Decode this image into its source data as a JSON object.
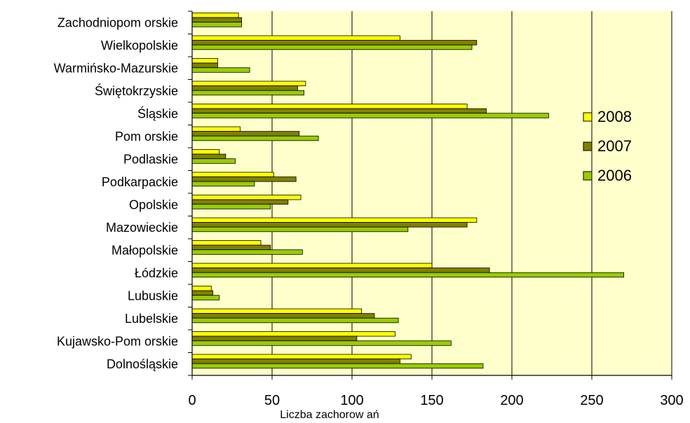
{
  "chart_data": {
    "type": "bar",
    "orientation": "horizontal",
    "title": "",
    "xlabel": "Liczba zachorow ań",
    "ylabel": "",
    "xlim": [
      0,
      300
    ],
    "xticks": [
      "0",
      "50",
      "100",
      "150",
      "200",
      "250",
      "300"
    ],
    "grid": true,
    "legend_position": "right",
    "categories": [
      "Zachodniopom orskie",
      "Wielkopolskie",
      "Warmińsko-Mazurskie",
      "Świętokrzyskie",
      "Śląskie",
      "Pom orskie",
      "Podlaskie",
      "Podkarpackie",
      "Opolskie",
      "Mazowieckie",
      "Małopolskie",
      "Łódzkie",
      "Lubuskie",
      "Lubelskie",
      "Kujawsko-Pom orskie",
      "Dolnośląskie"
    ],
    "series": [
      {
        "name": "2008",
        "color": "#ffff00",
        "values": [
          29,
          130,
          16,
          71,
          172,
          30,
          17,
          51,
          68,
          178,
          43,
          150,
          12,
          106,
          127,
          137
        ]
      },
      {
        "name": "2007",
        "color": "#808000",
        "values": [
          31,
          178,
          16,
          66,
          184,
          67,
          21,
          65,
          60,
          172,
          49,
          186,
          13,
          114,
          103,
          130
        ]
      },
      {
        "name": "2006",
        "color": "#99cc00",
        "values": [
          31,
          175,
          36,
          70,
          223,
          79,
          27,
          39,
          49,
          135,
          69,
          270,
          17,
          129,
          162,
          182
        ]
      }
    ],
    "colors": {
      "plot_background": "#ffffcc",
      "page_background": "#ffffff"
    }
  }
}
